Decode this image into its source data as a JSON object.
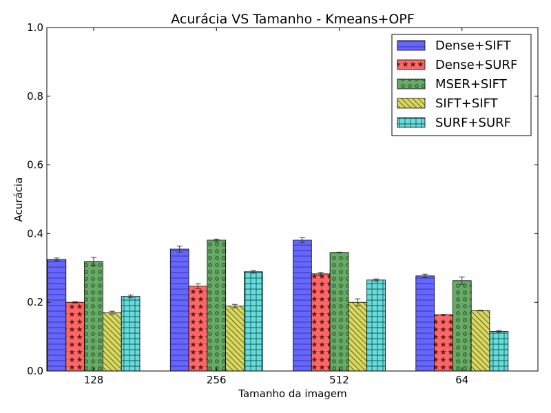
{
  "chart_data": {
    "type": "bar",
    "title": "Acurácia VS Tamanho - Kmeans+OPF",
    "xlabel": "Tamanho da imagem",
    "ylabel": "Acurácia",
    "categories": [
      "128",
      "256",
      "512",
      "64"
    ],
    "ylim": [
      0,
      1.0
    ],
    "yticks": [
      "0.0",
      "0.2",
      "0.4",
      "0.6",
      "0.8",
      "1.0"
    ],
    "grid": false,
    "legend_position": "top-right",
    "series": [
      {
        "name": "Dense+SIFT",
        "color": "#6666ff",
        "hatch": "horizontal-lines",
        "values": [
          0.325,
          0.355,
          0.381,
          0.277
        ],
        "errors": [
          0.004,
          0.009,
          0.007,
          0.005
        ]
      },
      {
        "name": "Dense+SURF",
        "color": "#ff6666",
        "hatch": "stars",
        "values": [
          0.2,
          0.247,
          0.283,
          0.164
        ],
        "errors": [
          0.002,
          0.007,
          0.004,
          0.001
        ]
      },
      {
        "name": "MSER+SIFT",
        "color": "#66aa66",
        "hatch": "circles",
        "values": [
          0.319,
          0.381,
          0.345,
          0.263
        ],
        "errors": [
          0.012,
          0.003,
          0.001,
          0.011
        ]
      },
      {
        "name": "SIFT+SIFT",
        "color": "#d8d860",
        "hatch": "diagonal-lines",
        "values": [
          0.17,
          0.189,
          0.2,
          0.176
        ],
        "errors": [
          0.004,
          0.005,
          0.01,
          0.001
        ]
      },
      {
        "name": "SURF+SURF",
        "color": "#66dddd",
        "hatch": "grid",
        "values": [
          0.217,
          0.289,
          0.265,
          0.115
        ],
        "errors": [
          0.004,
          0.004,
          0.003,
          0.003
        ]
      }
    ]
  }
}
